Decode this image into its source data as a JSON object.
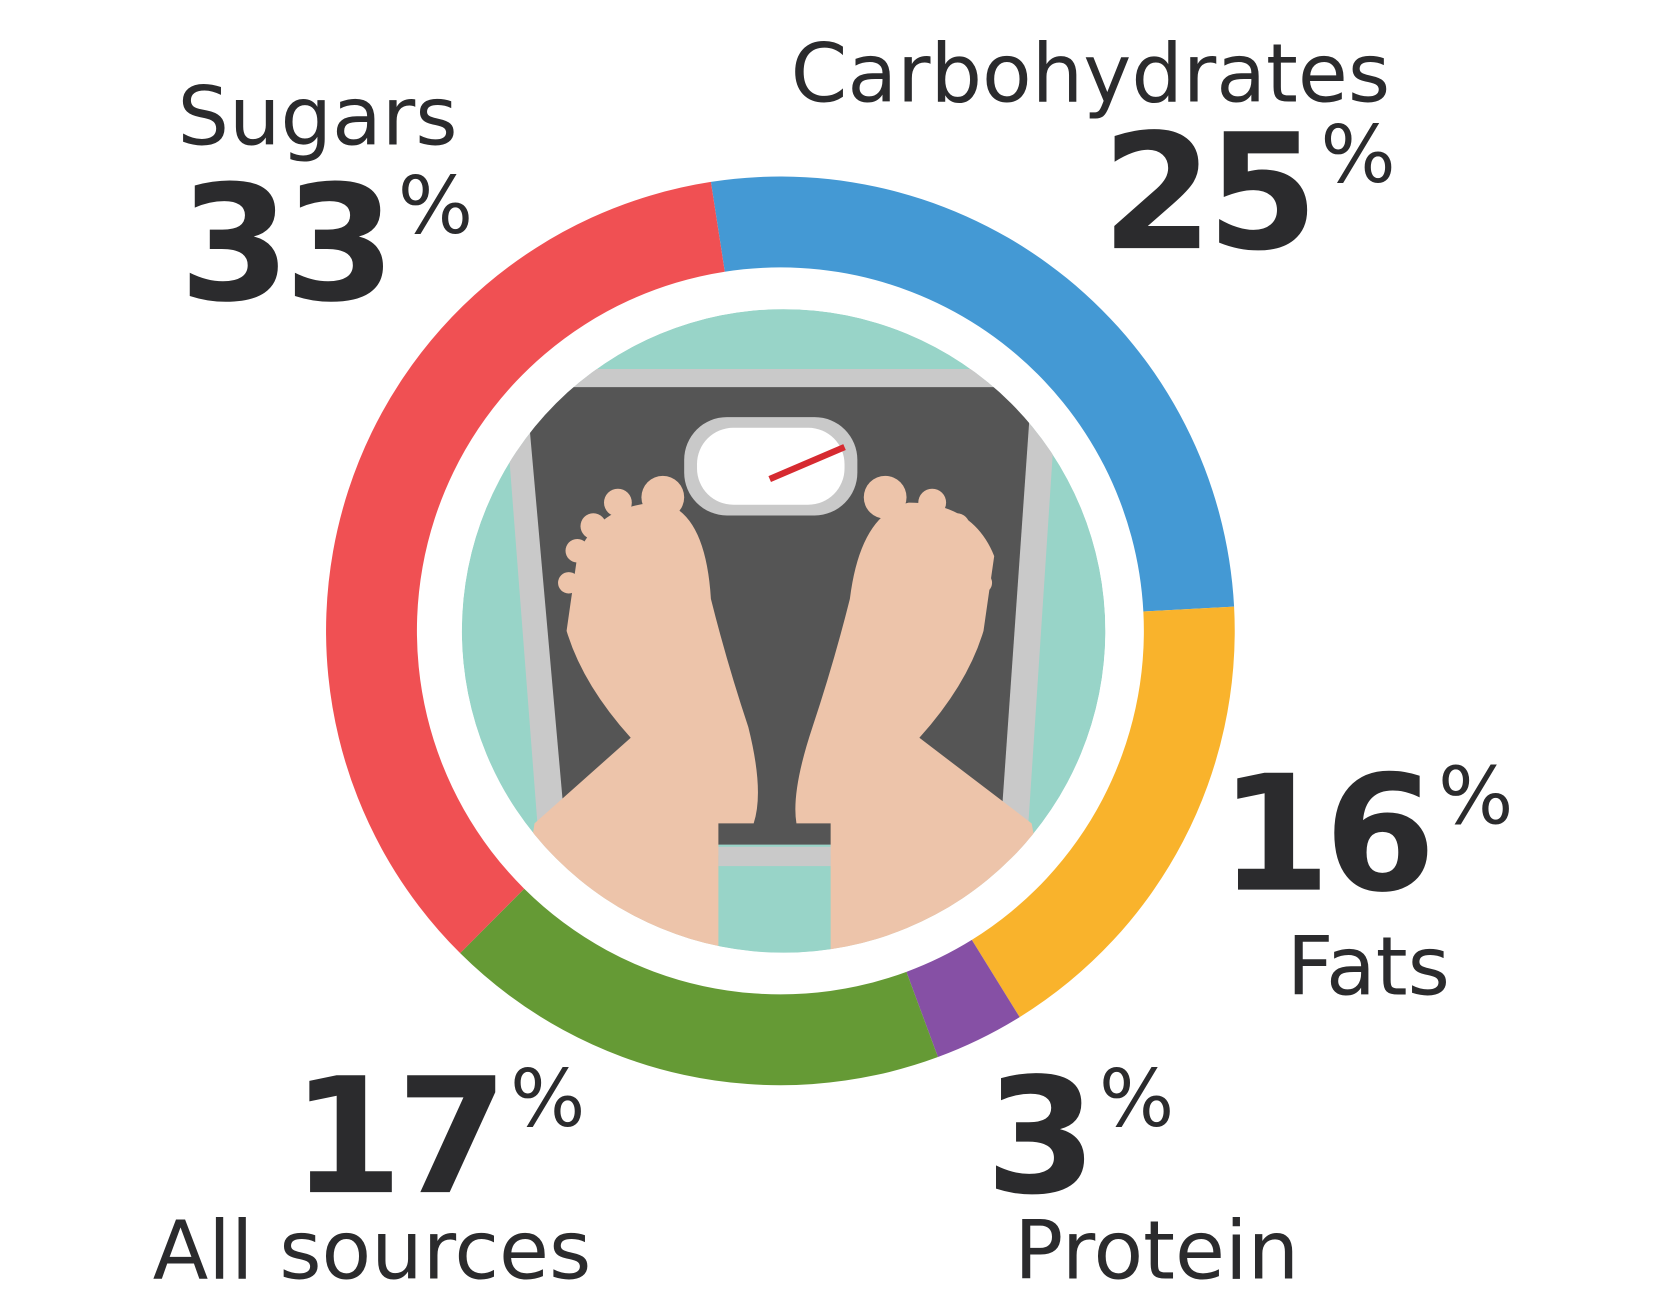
{
  "chart_data": {
    "type": "donut",
    "categories": [
      "Carbohydrates",
      "Fats",
      "Protein",
      "All sources",
      "Sugars"
    ],
    "values": [
      25,
      16,
      3,
      17,
      33
    ],
    "value_labels": [
      "25%",
      "16%",
      "3%",
      "17%",
      "33%"
    ],
    "colors": [
      "#4499d4",
      "#f9b32c",
      "#8650a5",
      "#659a35",
      "#f05053"
    ]
  }
}
